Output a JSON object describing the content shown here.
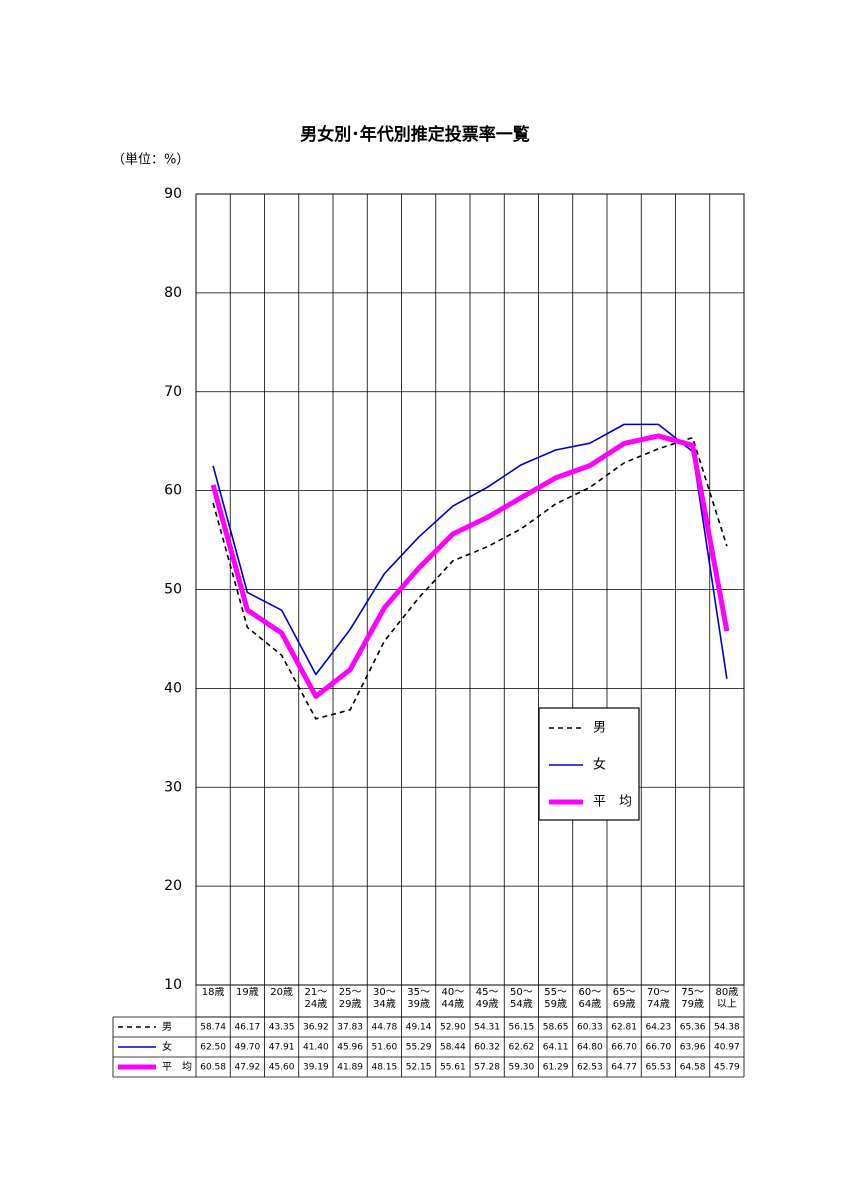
{
  "chart_data": {
    "type": "line",
    "title": "男女別･年代別推定投票率一覧",
    "unit_label": "（単位：%）",
    "categories": [
      "18歳",
      "19歳",
      "20歳",
      "21〜\n24歳",
      "25〜\n29歳",
      "30〜\n34歳",
      "35〜\n39歳",
      "40〜\n44歳",
      "45〜\n49歳",
      "50〜\n54歳",
      "55〜\n59歳",
      "60〜\n64歳",
      "65〜\n69歳",
      "70〜\n74歳",
      "75〜\n79歳",
      "80歳\n以上"
    ],
    "series": [
      {
        "name": "男",
        "color": "#000000",
        "dash": "5,4",
        "width": 1.6,
        "values": [
          58.74,
          46.17,
          43.35,
          36.92,
          37.83,
          44.78,
          49.14,
          52.9,
          54.31,
          56.15,
          58.65,
          60.33,
          62.81,
          64.23,
          65.36,
          54.38
        ],
        "value_labels": [
          "58.74",
          "46.17",
          "43.35",
          "36.92",
          "37.83",
          "44.78",
          "49.14",
          "52.90",
          "54.31",
          "56.15",
          "58.65",
          "60.33",
          "62.81",
          "64.23",
          "65.36",
          "54.38"
        ]
      },
      {
        "name": "女",
        "color": "#0000cc",
        "dash": "none",
        "width": 1.6,
        "values": [
          62.5,
          49.7,
          47.91,
          41.4,
          45.96,
          51.6,
          55.29,
          58.44,
          60.32,
          62.62,
          64.11,
          64.8,
          66.7,
          66.7,
          63.96,
          40.97
        ],
        "value_labels": [
          "62.50",
          "49.70",
          "47.91",
          "41.40",
          "45.96",
          "51.60",
          "55.29",
          "58.44",
          "60.32",
          "62.62",
          "64.11",
          "64.80",
          "66.70",
          "66.70",
          "63.96",
          "40.97"
        ]
      },
      {
        "name": "平　均",
        "color": "#ff00ff",
        "dash": "none",
        "width": 5,
        "values": [
          60.58,
          47.92,
          45.6,
          39.19,
          41.89,
          48.15,
          52.15,
          55.61,
          57.28,
          59.3,
          61.29,
          62.53,
          64.77,
          65.53,
          64.58,
          45.79
        ],
        "value_labels": [
          "60.58",
          "47.92",
          "45.60",
          "39.19",
          "41.89",
          "48.15",
          "52.15",
          "55.61",
          "57.28",
          "59.30",
          "61.29",
          "62.53",
          "64.77",
          "65.53",
          "64.58",
          "45.79"
        ]
      }
    ],
    "ylim": [
      10,
      90
    ],
    "yticks": [
      10,
      20,
      30,
      40,
      50,
      60,
      70,
      80,
      90
    ],
    "grid": true
  }
}
